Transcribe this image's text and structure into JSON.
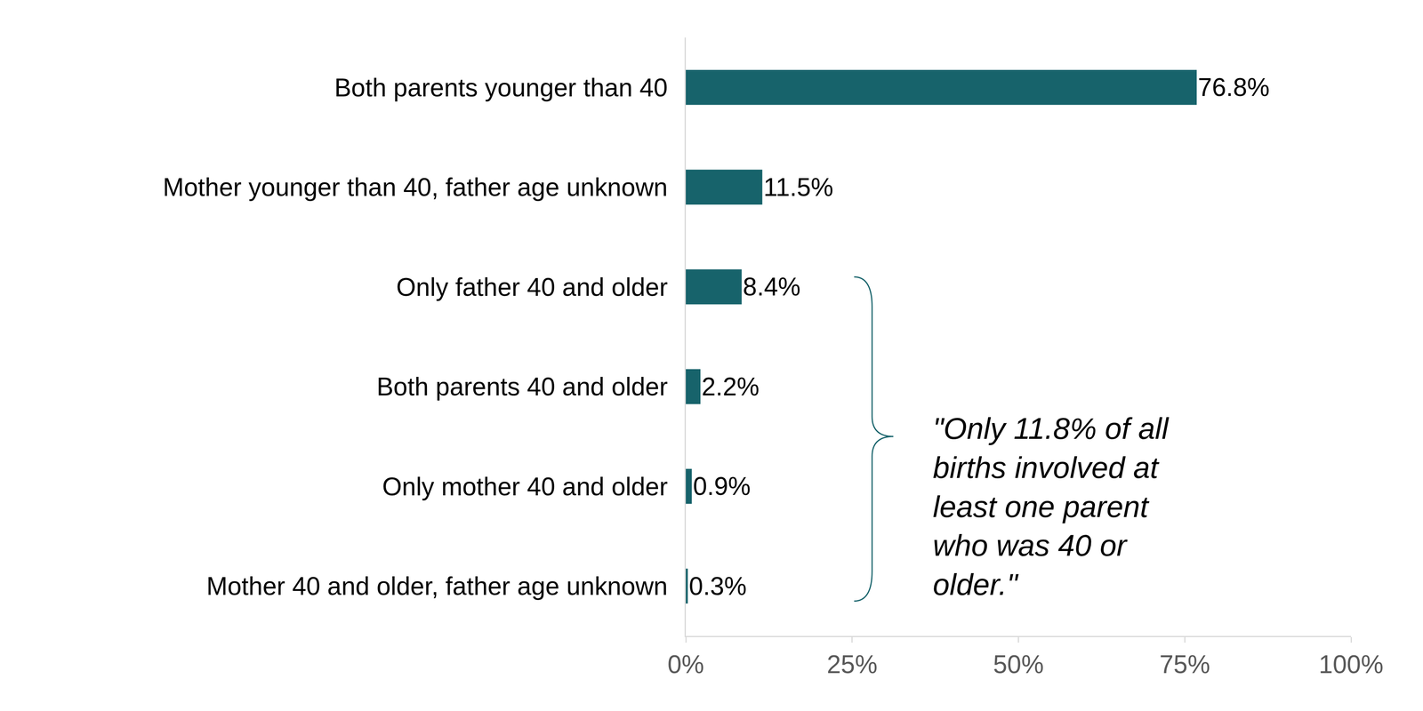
{
  "chart_data": {
    "type": "bar",
    "orientation": "horizontal",
    "categories": [
      "Both parents younger than 40",
      "Mother younger than 40, father age unknown",
      "Only father 40 and older",
      "Both parents 40 and older",
      "Only mother 40 and older",
      "Mother 40 and older, father age unknown"
    ],
    "values": [
      76.8,
      11.5,
      8.4,
      2.2,
      0.9,
      0.3
    ],
    "value_labels": [
      "76.8%",
      "11.5%",
      "8.4%",
      "2.2%",
      "0.9%",
      "0.3%"
    ],
    "color": "#17636b",
    "xlim": [
      0,
      100
    ],
    "xticks": [
      {
        "value": 0,
        "label": "0%"
      },
      {
        "value": 25,
        "label": "25%"
      },
      {
        "value": 50,
        "label": "50%"
      },
      {
        "value": 75,
        "label": "75%"
      },
      {
        "value": 100,
        "label": "100%"
      }
    ],
    "grid": false,
    "data_labels": true,
    "annotations": [
      {
        "text": "\"Only 11.8% of all births involved at least one parent who was 40 or older.\""
      }
    ]
  }
}
